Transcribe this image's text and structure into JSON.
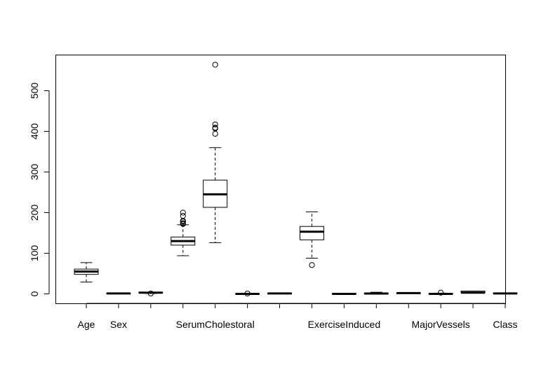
{
  "chart_data": {
    "type": "box",
    "title": "",
    "xlabel": "",
    "ylabel": "",
    "ylim": [
      -25,
      590
    ],
    "yticks": [
      0,
      100,
      200,
      300,
      400,
      500
    ],
    "grid": false,
    "categories": [
      "Age",
      "",
      "",
      "",
      "SerumCholestoral",
      "",
      "",
      "",
      "ExerciseInduced",
      "",
      "",
      "MajorVessels",
      "",
      ""
    ],
    "category_labels": [
      {
        "text": "Age",
        "index": 0
      },
      {
        "text": "Sex",
        "index": 1
      },
      {
        "text": "SerumCholestoral",
        "index": 4
      },
      {
        "text": "ExerciseInduced",
        "index": 8
      },
      {
        "text": "MajorVessels",
        "index": 11
      },
      {
        "text": "Class",
        "index": 13
      }
    ],
    "boxes": [
      {
        "min": 29,
        "q1": 48,
        "median": 55,
        "q3": 61,
        "max": 77,
        "outliers": []
      },
      {
        "min": 0,
        "q1": 0,
        "median": 1,
        "q3": 1,
        "max": 1,
        "outliers": []
      },
      {
        "min": 1,
        "q1": 3,
        "median": 3,
        "q3": 4,
        "max": 4,
        "outliers": [
          1
        ]
      },
      {
        "min": 94,
        "q1": 120,
        "median": 130,
        "q3": 140,
        "max": 170,
        "outliers": [
          172,
          174,
          178,
          180,
          192,
          200
        ]
      },
      {
        "min": 126,
        "q1": 213,
        "median": 245,
        "q3": 280,
        "max": 360,
        "outliers": [
          394,
          407,
          409,
          417,
          564
        ]
      },
      {
        "min": 0,
        "q1": 0,
        "median": 0,
        "q3": 0,
        "max": 0,
        "outliers": [
          1
        ]
      },
      {
        "min": 0,
        "q1": 0,
        "median": 1,
        "q3": 2,
        "max": 2,
        "outliers": []
      },
      {
        "min": 88,
        "q1": 133,
        "median": 153,
        "q3": 166,
        "max": 202,
        "outliers": [
          71
        ]
      },
      {
        "min": 0,
        "q1": 0,
        "median": 0,
        "q3": 1,
        "max": 1,
        "outliers": []
      },
      {
        "min": 0,
        "q1": 0,
        "median": 0.8,
        "q3": 1.6,
        "max": 4,
        "outliers": []
      },
      {
        "min": 1,
        "q1": 1,
        "median": 2,
        "q3": 2,
        "max": 3,
        "outliers": []
      },
      {
        "min": 0,
        "q1": 0,
        "median": 0,
        "q3": 1,
        "max": 2,
        "outliers": [
          3
        ]
      },
      {
        "min": 3,
        "q1": 3,
        "median": 3,
        "q3": 7,
        "max": 7,
        "outliers": []
      },
      {
        "min": 1,
        "q1": 1,
        "median": 1,
        "q3": 2,
        "max": 2,
        "outliers": []
      }
    ]
  }
}
